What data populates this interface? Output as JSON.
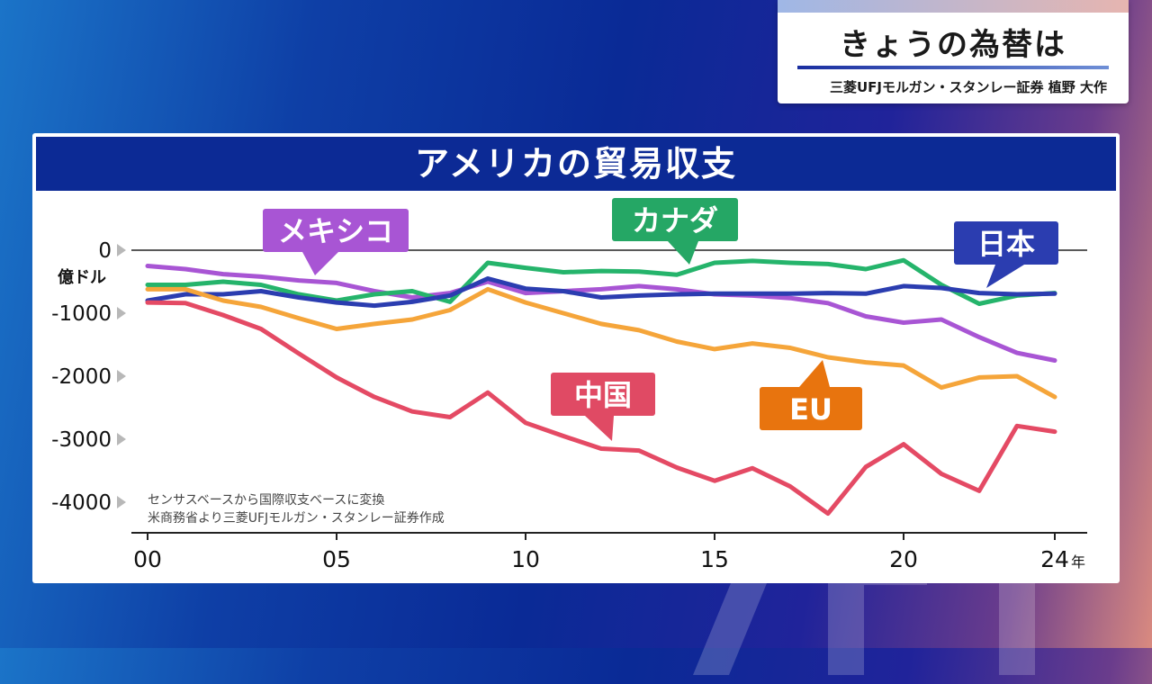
{
  "header": {
    "title": "きょうの為替は",
    "subtitle": "三菱UFJモルガン・スタンレー証券 植野 大作"
  },
  "chart_data": {
    "type": "line",
    "title": "アメリカの貿易収支",
    "ylabel": "億ドル",
    "xunit": "年",
    "ylim": [
      -4500,
      100
    ],
    "yticks": [
      0,
      -1000,
      -2000,
      -3000,
      -4000
    ],
    "ytick_labels": [
      "0",
      "-1000",
      "-2000",
      "-3000",
      "-4000"
    ],
    "xticks": [
      0,
      5,
      10,
      15,
      20,
      24
    ],
    "xtick_labels": [
      "00",
      "05",
      "10",
      "15",
      "20",
      "24"
    ],
    "notes": [
      "センサスベースから国際収支ベースに変換",
      "米商務省より三菱UFJモルガン・スタンレー証券作成"
    ],
    "x": [
      0,
      1,
      2,
      3,
      4,
      5,
      6,
      7,
      8,
      9,
      10,
      11,
      12,
      13,
      14,
      15,
      16,
      17,
      18,
      19,
      20,
      21,
      22,
      23,
      24
    ],
    "series": [
      {
        "name": "メキシコ",
        "color": "#a855d4",
        "values": [
          -250,
          -300,
          -380,
          -420,
          -480,
          -520,
          -650,
          -750,
          -680,
          -500,
          -680,
          -650,
          -620,
          -570,
          -620,
          -700,
          -720,
          -760,
          -840,
          -1050,
          -1150,
          -1100,
          -1380,
          -1630,
          -1750
        ]
      },
      {
        "name": "カナダ",
        "color": "#25b46b",
        "values": [
          -550,
          -550,
          -500,
          -550,
          -700,
          -800,
          -700,
          -650,
          -820,
          -200,
          -280,
          -350,
          -330,
          -340,
          -390,
          -200,
          -170,
          -200,
          -220,
          -300,
          -160,
          -550,
          -850,
          -720,
          -680
        ]
      },
      {
        "name": "日本",
        "color": "#2b3db0",
        "values": [
          -800,
          -700,
          -700,
          -650,
          -750,
          -830,
          -880,
          -820,
          -720,
          -450,
          -610,
          -650,
          -750,
          -720,
          -700,
          -690,
          -690,
          -690,
          -680,
          -690,
          -570,
          -600,
          -680,
          -700,
          -690
        ]
      },
      {
        "name": "EU",
        "color": "#f5a53a",
        "values": [
          -620,
          -620,
          -800,
          -900,
          -1080,
          -1250,
          -1170,
          -1100,
          -950,
          -620,
          -830,
          -1000,
          -1170,
          -1270,
          -1450,
          -1570,
          -1480,
          -1550,
          -1700,
          -1780,
          -1830,
          -2180,
          -2020,
          -2000,
          -2330
        ]
      },
      {
        "name": "中国",
        "color": "#e44a64",
        "values": [
          -830,
          -840,
          -1030,
          -1250,
          -1640,
          -2020,
          -2330,
          -2560,
          -2650,
          -2260,
          -2740,
          -2950,
          -3150,
          -3180,
          -3450,
          -3660,
          -3460,
          -3750,
          -4180,
          -3440,
          -3080,
          -3550,
          -3820,
          -2790,
          -2880
        ]
      }
    ],
    "label_colors": {
      "メキシコ": "#a855d4",
      "カナダ": "#25a765",
      "日本": "#2b3db0",
      "EU": "#e8740e",
      "中国": "#e04a64"
    }
  }
}
